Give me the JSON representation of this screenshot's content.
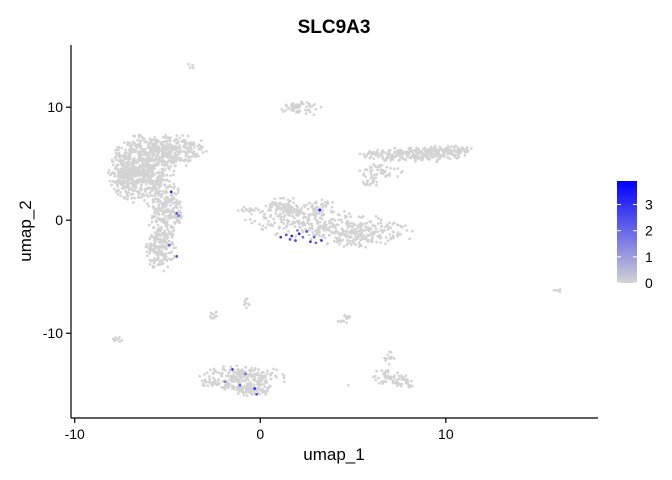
{
  "chart_data": {
    "type": "scatter",
    "title": "SLC9A3",
    "xlabel": "umap_1",
    "ylabel": "umap_2",
    "xlim": [
      -10.2,
      18.2
    ],
    "ylim": [
      -17.5,
      15.5
    ],
    "xticks": [
      -10,
      0,
      10
    ],
    "yticks": [
      -10,
      0,
      10
    ],
    "grid": false,
    "colors": {
      "low": "#d3d3d3",
      "high": "#0000ff"
    },
    "legend": {
      "position": "right",
      "min": 0,
      "max": 3.9,
      "ticks": [
        0,
        1,
        2,
        3
      ]
    },
    "clusters": [
      {
        "shape": "blob",
        "cx": -6.4,
        "cy": 4.5,
        "rx": 1.2,
        "ry": 2.0,
        "n": 650
      },
      {
        "shape": "blob",
        "cx": -4.7,
        "cy": 6.2,
        "rx": 1.2,
        "ry": 1.0,
        "n": 250
      },
      {
        "shape": "blob",
        "cx": -7.3,
        "cy": 3.3,
        "rx": 0.5,
        "ry": 0.9,
        "n": 90
      },
      {
        "shape": "blob",
        "cx": -5.2,
        "cy": 0.6,
        "rx": 0.55,
        "ry": 2.5,
        "n": 240
      },
      {
        "shape": "blob",
        "cx": -5.4,
        "cy": -2.6,
        "rx": 0.55,
        "ry": 1.3,
        "n": 140
      },
      {
        "shape": "blob",
        "cx": -4.5,
        "cy": 0.9,
        "rx": 0.25,
        "ry": 1.3,
        "n": 40
      },
      {
        "shape": "blob",
        "cx": 2.1,
        "cy": 9.9,
        "rx": 0.8,
        "ry": 0.45,
        "n": 55
      },
      {
        "shape": "blob",
        "cx": -3.8,
        "cy": 13.6,
        "rx": 0.15,
        "ry": 0.15,
        "n": 4
      },
      {
        "shape": "blob",
        "cx": 2.2,
        "cy": 0.2,
        "rx": 2.0,
        "ry": 1.1,
        "n": 210
      },
      {
        "shape": "blob",
        "cx": 5.3,
        "cy": -1.0,
        "rx": 1.9,
        "ry": 1.0,
        "n": 260
      },
      {
        "shape": "blob",
        "cx": 1.2,
        "cy": 1.3,
        "rx": 0.7,
        "ry": 0.5,
        "n": 50
      },
      {
        "shape": "blob",
        "cx": 3.2,
        "cy": 1.1,
        "rx": 0.45,
        "ry": 0.5,
        "n": 30
      },
      {
        "shape": "blob",
        "cx": -0.4,
        "cy": 0.9,
        "rx": 0.6,
        "ry": 0.25,
        "n": 20
      },
      {
        "shape": "blob",
        "cx": 6.5,
        "cy": 4.3,
        "rx": 0.9,
        "ry": 0.5,
        "n": 50
      },
      {
        "shape": "blob",
        "cx": 8.4,
        "cy": 5.8,
        "rx": 2.0,
        "ry": 0.45,
        "n": 240
      },
      {
        "shape": "blob",
        "cx": 10.2,
        "cy": 6.2,
        "rx": 0.8,
        "ry": 0.35,
        "n": 70
      },
      {
        "shape": "blob",
        "cx": 5.9,
        "cy": 3.3,
        "rx": 0.4,
        "ry": 0.25,
        "n": 15
      },
      {
        "shape": "blob",
        "cx": -1.0,
        "cy": -14.0,
        "rx": 1.6,
        "ry": 0.8,
        "n": 240
      },
      {
        "shape": "blob",
        "cx": -0.4,
        "cy": -15.0,
        "rx": 0.7,
        "ry": 0.45,
        "n": 70
      },
      {
        "shape": "blob",
        "cx": 6.9,
        "cy": -12.2,
        "rx": 0.3,
        "ry": 0.4,
        "n": 14
      },
      {
        "shape": "blob",
        "cx": 7.0,
        "cy": -13.9,
        "rx": 0.8,
        "ry": 0.45,
        "n": 45
      },
      {
        "shape": "blob",
        "cx": 7.8,
        "cy": -14.4,
        "rx": 0.35,
        "ry": 0.45,
        "n": 20
      },
      {
        "shape": "blob",
        "cx": -2.5,
        "cy": -8.4,
        "rx": 0.2,
        "ry": 0.3,
        "n": 10
      },
      {
        "shape": "blob",
        "cx": -0.7,
        "cy": -7.4,
        "rx": 0.15,
        "ry": 0.35,
        "n": 8
      },
      {
        "shape": "blob",
        "cx": 4.7,
        "cy": -8.5,
        "rx": 0.2,
        "ry": 0.25,
        "n": 8
      },
      {
        "shape": "blob",
        "cx": 4.4,
        "cy": -9.0,
        "rx": 0.2,
        "ry": 0.2,
        "n": 6
      },
      {
        "shape": "blob",
        "cx": -7.6,
        "cy": -10.5,
        "rx": 0.3,
        "ry": 0.2,
        "n": 8
      },
      {
        "shape": "blob",
        "cx": 16.0,
        "cy": -6.2,
        "rx": 0.2,
        "ry": 0.12,
        "n": 5
      },
      {
        "shape": "blob",
        "cx": 4.7,
        "cy": -14.6,
        "rx": 0.05,
        "ry": 0.05,
        "n": 1
      }
    ],
    "expressing_cells": [
      {
        "x": -4.8,
        "y": 2.5,
        "v": 3.3
      },
      {
        "x": -4.5,
        "y": 0.6,
        "v": 2.4
      },
      {
        "x": -4.4,
        "y": 0.4,
        "v": 1.8
      },
      {
        "x": -4.9,
        "y": -2.2,
        "v": 2.2
      },
      {
        "x": -4.5,
        "y": -3.2,
        "v": 2.6
      },
      {
        "x": 1.1,
        "y": -1.5,
        "v": 3.0
      },
      {
        "x": 1.4,
        "y": -1.3,
        "v": 2.4
      },
      {
        "x": 1.7,
        "y": -1.4,
        "v": 3.2
      },
      {
        "x": 1.9,
        "y": -1.8,
        "v": 2.8
      },
      {
        "x": 2.1,
        "y": -1.2,
        "v": 3.5
      },
      {
        "x": 2.3,
        "y": -1.5,
        "v": 2.0
      },
      {
        "x": 2.5,
        "y": -1.0,
        "v": 2.6
      },
      {
        "x": 2.7,
        "y": -1.9,
        "v": 2.9
      },
      {
        "x": 3.0,
        "y": -2.0,
        "v": 2.1
      },
      {
        "x": 3.3,
        "y": -1.8,
        "v": 3.0
      },
      {
        "x": 3.2,
        "y": 0.9,
        "v": 3.4
      },
      {
        "x": 2.0,
        "y": -0.9,
        "v": 1.7
      },
      {
        "x": 1.6,
        "y": -1.7,
        "v": 2.5
      },
      {
        "x": 2.9,
        "y": -1.5,
        "v": 2.2
      },
      {
        "x": -1.5,
        "y": -13.2,
        "v": 2.9
      },
      {
        "x": -1.1,
        "y": -14.6,
        "v": 2.2
      },
      {
        "x": -0.8,
        "y": -13.6,
        "v": 1.9
      },
      {
        "x": -0.3,
        "y": -14.9,
        "v": 3.1
      },
      {
        "x": -0.2,
        "y": -15.4,
        "v": 2.7
      },
      {
        "x": -1.9,
        "y": -14.3,
        "v": 1.6
      }
    ]
  }
}
